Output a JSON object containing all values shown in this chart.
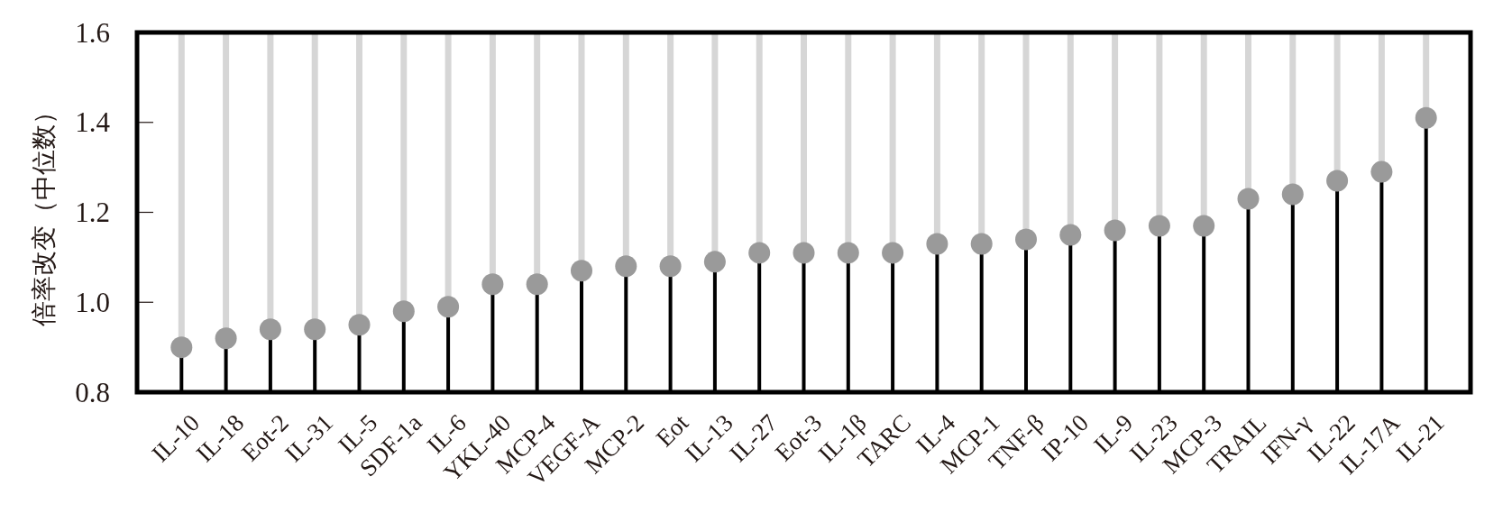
{
  "chart_data": {
    "type": "lollipop",
    "ylabel": "倍率改变（中位数）",
    "categories": [
      "IL-10",
      "IL-18",
      "Eot-2",
      "IL-31",
      "IL-5",
      "SDF-1a",
      "IL-6",
      "YKL-40",
      "MCP-4",
      "VEGF-A",
      "MCP-2",
      "Eot",
      "IL-13",
      "IL-27",
      "Eot-3",
      "IL-1β",
      "TARC",
      "IL-4",
      "MCP-1",
      "TNF-β",
      "IP-10",
      "IL-9",
      "IL-23",
      "MCP-3",
      "TRAIL",
      "IFN-γ",
      "IL-22",
      "IL-17A",
      "IL-21"
    ],
    "series": [
      {
        "type": "bar",
        "color": "#d6d6d6",
        "base": [
          0.9,
          0.92,
          0.94,
          0.94,
          0.95,
          0.98,
          0.99,
          1.04,
          1.04,
          1.07,
          1.08,
          1.08,
          1.09,
          1.11,
          1.11,
          1.11,
          1.11,
          1.13,
          1.13,
          1.14,
          1.15,
          1.16,
          1.17,
          1.17,
          1.23,
          1.24,
          1.27,
          1.29,
          1.41
        ],
        "values": [
          0.7,
          0.68,
          0.66,
          0.66,
          0.65,
          0.62,
          0.61,
          0.56,
          0.56,
          0.53,
          0.52,
          0.52,
          0.51,
          0.49,
          0.49,
          0.49,
          0.49,
          0.47,
          0.47,
          0.46,
          0.45,
          0.44,
          0.43,
          0.43,
          0.37,
          0.36,
          0.33,
          0.31,
          0.19
        ]
      },
      {
        "color": "#9a9a9a",
        "values": [
          0.9,
          0.92,
          0.94,
          0.94,
          0.95,
          0.98,
          0.99,
          1.04,
          1.04,
          1.07,
          1.08,
          1.08,
          1.09,
          1.11,
          1.11,
          1.11,
          1.11,
          1.13,
          1.13,
          1.14,
          1.15,
          1.16,
          1.17,
          1.17,
          1.23,
          1.24,
          1.27,
          1.29,
          1.41
        ]
      }
    ],
    "ylim": [
      0.8,
      1.6
    ],
    "yticks": [
      0.8,
      {
        "value": 1.0,
        "label": "1.0"
      },
      1.2,
      1.4,
      1.6
    ]
  }
}
